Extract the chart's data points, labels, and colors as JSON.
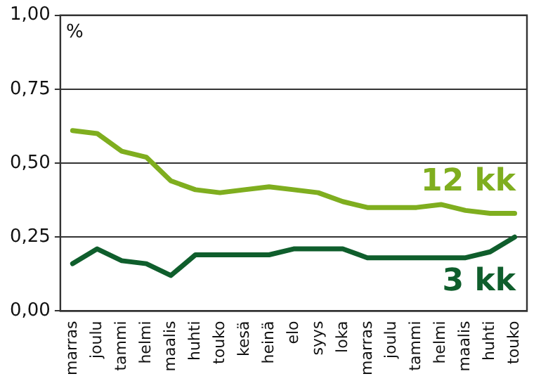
{
  "chart_data": {
    "type": "line",
    "ylabel": "%",
    "categories": [
      "marras",
      "joulu",
      "tammi",
      "helmi",
      "maalis",
      "huhti",
      "touko",
      "kesä",
      "heinä",
      "elo",
      "syys",
      "loka",
      "marras",
      "joulu",
      "tammi",
      "helmi",
      "maalis",
      "huhti",
      "touko"
    ],
    "series": [
      {
        "name": "12 kk",
        "color": "#7fae1f",
        "values": [
          0.61,
          0.6,
          0.54,
          0.52,
          0.44,
          0.41,
          0.4,
          0.41,
          0.42,
          0.41,
          0.4,
          0.37,
          0.35,
          0.35,
          0.35,
          0.36,
          0.34,
          0.33,
          0.33
        ]
      },
      {
        "name": "3 kk",
        "color": "#0f5e2c",
        "values": [
          0.16,
          0.21,
          0.17,
          0.16,
          0.12,
          0.19,
          0.19,
          0.19,
          0.19,
          0.21,
          0.21,
          0.21,
          0.18,
          0.18,
          0.18,
          0.18,
          0.18,
          0.2,
          0.25
        ]
      }
    ],
    "ylim": [
      0,
      1
    ],
    "yticks": [
      {
        "value": 0,
        "label": "0,00"
      },
      {
        "value": 0.25,
        "label": "0,25"
      },
      {
        "value": 0.5,
        "label": "0,50"
      },
      {
        "value": 0.75,
        "label": "0,75"
      },
      {
        "value": 1,
        "label": "1,00"
      }
    ],
    "grid": "y",
    "legend": false,
    "marker": "none",
    "line_style": "solid"
  }
}
